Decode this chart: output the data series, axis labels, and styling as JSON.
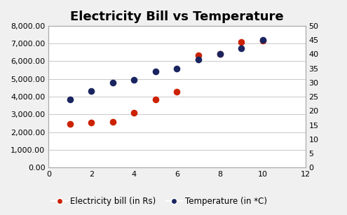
{
  "title": "Electricity Bill vs Temperature",
  "xlim": [
    0,
    12
  ],
  "xticks": [
    0,
    2,
    4,
    6,
    8,
    10,
    12
  ],
  "ylim_left": [
    0,
    8000
  ],
  "yticks_left": [
    0,
    1000,
    2000,
    3000,
    4000,
    5000,
    6000,
    7000,
    8000
  ],
  "ylim_right": [
    0,
    50
  ],
  "yticks_right": [
    0,
    5,
    10,
    15,
    20,
    25,
    30,
    35,
    40,
    45,
    50
  ],
  "electricity_x": [
    1,
    2,
    3,
    4,
    5,
    6,
    7,
    8,
    9,
    10
  ],
  "electricity_y": [
    2450,
    2550,
    2580,
    3100,
    3850,
    4300,
    6350,
    6400,
    7100,
    7150
  ],
  "temperature_x": [
    1,
    2,
    3,
    4,
    5,
    6,
    7,
    8,
    9,
    10
  ],
  "temperature_y": [
    24,
    27,
    30,
    31,
    34,
    35,
    38,
    40,
    42,
    45
  ],
  "elec_color": "#cc2200",
  "temp_color": "#1a2560",
  "legend_elec": "Electricity bill (in Rs)",
  "legend_temp": "Temperature (in *C)",
  "bg_color": "#ffffff",
  "fig_bg_color": "#f0f0f0",
  "grid_color": "#c8c8c8",
  "title_fontsize": 13,
  "legend_fontsize": 8.5,
  "tick_fontsize": 8,
  "marker_size": 35
}
